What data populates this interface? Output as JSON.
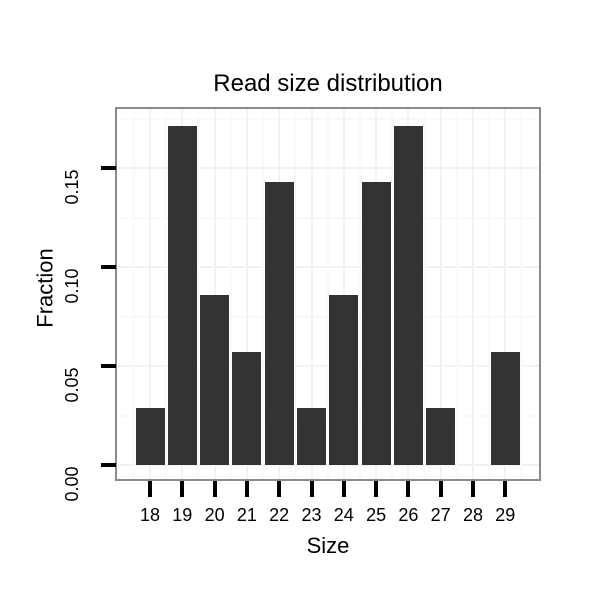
{
  "chart_data": {
    "type": "bar",
    "title": "Read size distribution",
    "xlabel": "Size",
    "ylabel": "Fraction",
    "categories": [
      18,
      19,
      20,
      21,
      22,
      23,
      24,
      25,
      26,
      27,
      28,
      29
    ],
    "values": [
      0.0286,
      0.1714,
      0.0857,
      0.0571,
      0.1429,
      0.0286,
      0.0857,
      0.1429,
      0.1714,
      0.0286,
      0,
      0.0571
    ],
    "y_ticks": [
      {
        "value": 0.0,
        "label": "0.00"
      },
      {
        "value": 0.05,
        "label": "0.05"
      },
      {
        "value": 0.1,
        "label": "0.10"
      },
      {
        "value": 0.15,
        "label": "0.15"
      }
    ],
    "y_minor": [
      0.025,
      0.075,
      0.125,
      0.175
    ],
    "ylim": [
      -0.009,
      0.18
    ],
    "grid": "major and minor gridlines, very light gray, horizontal and vertical",
    "legend": "none",
    "bar_color": "#333333"
  },
  "colors": {
    "background": "#ffffff",
    "bar": "#333333",
    "panel_border": "#8a8a8a",
    "axis_tick": "#000000",
    "text": "#000000",
    "grid_major": "#f2f2f2",
    "grid_minor": "#f9f9f9"
  }
}
